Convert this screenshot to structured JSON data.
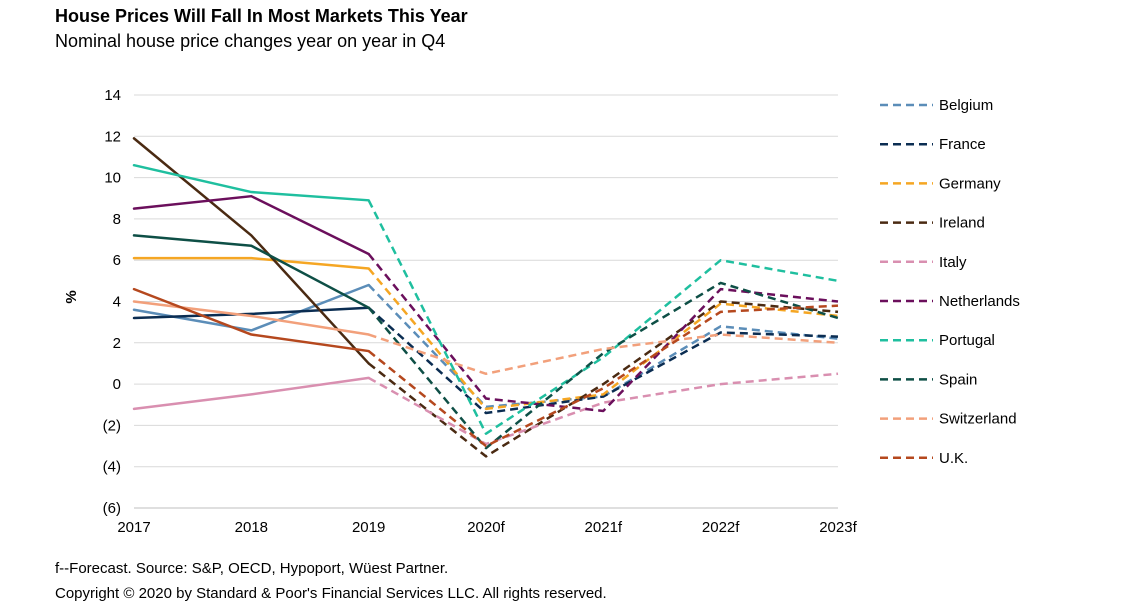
{
  "title": "House Prices Will Fall In Most Markets This Year",
  "subtitle": "Nominal house price changes year on year in Q4",
  "footnotes": {
    "forecast_source": "f--Forecast. Source: S&P, OECD,  Hypoport, Wüest Partner.",
    "copyright": "Copyright © 2020 by Standard & Poor's Financial Services LLC. All rights reserved."
  },
  "chart_data": {
    "type": "line",
    "title": "House Prices Will Fall In Most Markets This Year",
    "subtitle": "Nominal house price changes year on year in Q4",
    "xlabel": "",
    "ylabel": "%",
    "categories": [
      "2017",
      "2018",
      "2019",
      "2020f",
      "2021f",
      "2022f",
      "2023f"
    ],
    "actual_through_index": 2,
    "ylim": [
      -6,
      14
    ],
    "y_ticks": [
      14,
      12,
      10,
      8,
      6,
      4,
      2,
      0,
      -2,
      -4,
      -6
    ],
    "y_tick_labels": [
      "14",
      "12",
      "10",
      "8",
      "6",
      "4",
      "2",
      "0",
      "(2)",
      "(4)",
      "(6)"
    ],
    "grid": true,
    "legend_position": "right",
    "note": "Solid lines = actual; dashed lines = forecast",
    "series": [
      {
        "name": "Belgium",
        "color": "#5b8db8",
        "values": [
          3.6,
          2.6,
          4.8,
          -1.1,
          -0.6,
          2.8,
          2.2
        ]
      },
      {
        "name": "France",
        "color": "#0b2d52",
        "values": [
          3.2,
          3.4,
          3.7,
          -1.4,
          -0.6,
          2.5,
          2.3
        ]
      },
      {
        "name": "Germany",
        "color": "#f5a623",
        "values": [
          6.1,
          6.1,
          5.6,
          -1.2,
          -0.5,
          3.9,
          3.3
        ]
      },
      {
        "name": "Ireland",
        "color": "#4a2a12",
        "values": [
          11.9,
          7.2,
          1.0,
          -3.5,
          0.0,
          4.0,
          3.5
        ]
      },
      {
        "name": "Italy",
        "color": "#d98fb0",
        "values": [
          -1.2,
          -0.5,
          0.3,
          -2.9,
          -0.9,
          0.0,
          0.5
        ]
      },
      {
        "name": "Netherlands",
        "color": "#6b0f5c",
        "values": [
          8.5,
          9.1,
          6.3,
          -0.7,
          -1.3,
          4.6,
          4.0
        ]
      },
      {
        "name": "Portugal",
        "color": "#1fbf9f",
        "values": [
          10.6,
          9.3,
          8.9,
          -2.4,
          1.3,
          6.0,
          5.0
        ]
      },
      {
        "name": "Spain",
        "color": "#0e4f46",
        "values": [
          7.2,
          6.7,
          3.7,
          -3.1,
          1.5,
          4.9,
          3.2
        ]
      },
      {
        "name": "Switzerland",
        "color": "#f2a07b",
        "values": [
          4.0,
          3.3,
          2.4,
          0.5,
          1.7,
          2.4,
          2.0
        ]
      },
      {
        "name": "U.K.",
        "color": "#b5481e",
        "values": [
          4.6,
          2.4,
          1.6,
          -3.0,
          -0.2,
          3.5,
          3.8
        ]
      }
    ]
  }
}
